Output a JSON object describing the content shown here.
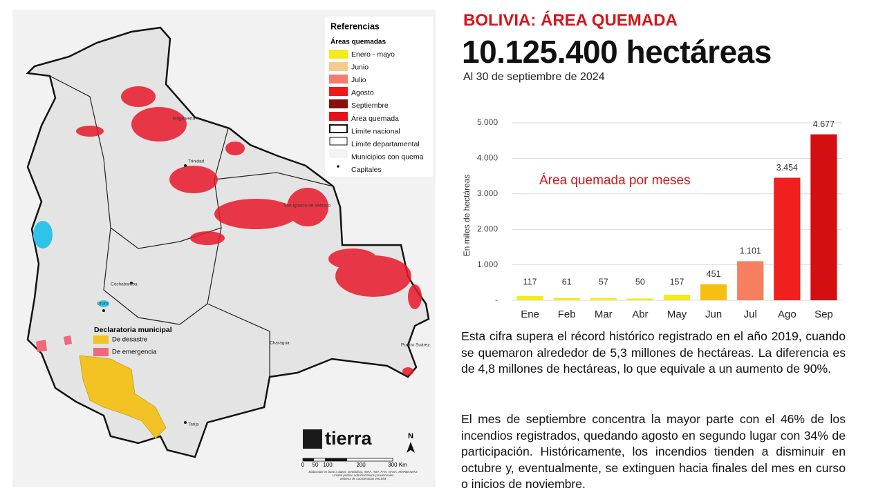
{
  "header": {
    "title": "BOLIVIA: ÁREA QUEMADA",
    "total": "10.125.400 hectáreas",
    "date": "Al 30 de septiembre de 2024"
  },
  "chart_data": {
    "type": "bar",
    "title": "Área quemada por meses",
    "ylabel": "En miles de hectáreas",
    "categories": [
      "Ene",
      "Feb",
      "Mar",
      "Abr",
      "May",
      "Jun",
      "Jul",
      "Ago",
      "Sep"
    ],
    "values": [
      117,
      61,
      57,
      50,
      157,
      451,
      1101,
      3454,
      4677
    ],
    "value_labels": [
      "117",
      "61",
      "57",
      "50",
      "157",
      "451",
      "1.101",
      "3.454",
      "4.677"
    ],
    "colors": [
      "#f5ea1a",
      "#f5ea1a",
      "#f5ea1a",
      "#f5ea1a",
      "#f5ea1a",
      "#f7bf12",
      "#f57f5e",
      "#f0201f",
      "#d40f12"
    ],
    "ylim": [
      0,
      5000
    ],
    "yticks": [
      {
        "value": 0,
        "label": "-"
      },
      {
        "value": 1000,
        "label": "1.000"
      },
      {
        "value": 2000,
        "label": "2.000"
      },
      {
        "value": 3000,
        "label": "3.000"
      },
      {
        "value": 4000,
        "label": "4.000"
      },
      {
        "value": 5000,
        "label": "5.000"
      }
    ],
    "grid": true
  },
  "text": {
    "paragraphs": [
      "Esta cifra supera el récord histórico registrado en el año 2019, cuando se quemaron alrededor de 5,3 millones de hectáreas. La diferencia es de 4,8 millones de hectáreas, lo que equivale a un aumento de 90%.",
      "El mes de septiembre concentra la mayor parte con el 46% de los incendios registrados, quedando agosto en segundo lugar con 34% de participación. Históricamente, los incendios tienden a disminuir en octubre y, eventualmente, se extinguen hacia finales del mes en curso o inicios de noviembre."
    ]
  },
  "map": {
    "legend_title": "Referencias",
    "legend_subtitle": "Áreas quemadas",
    "legend_items": [
      "Enero - mayo",
      "Junio",
      "Julio",
      "Agosto",
      "Septiembre",
      "Área quemada",
      "Límite nacional",
      "Límite departamental",
      "Municipios con quema",
      "Capitales"
    ],
    "declaration_title": "Declaratoria municipal",
    "declaration_items": [
      "De desastre",
      "De emergencia"
    ],
    "places": [
      "Trinidad",
      "Cochabamba",
      "Oruro",
      "Tarija",
      "San Ignacio de Velasco",
      "Magdalena",
      "Puerto Suárez",
      "Charagua"
    ],
    "scale": [
      "0",
      "50",
      "100",
      "200",
      "300 Km"
    ],
    "logo": "tierra",
    "north": "N",
    "notes": [
      "Elaborado en base a datos: Geobolivia, INRA, ABT, FAN, NASA, MAPBIOMAS",
      "Límites político administrativos provisionales",
      "Sistema de coordenadas WGS84"
    ]
  }
}
